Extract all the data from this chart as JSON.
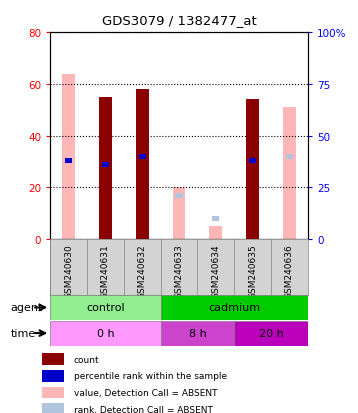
{
  "title": "GDS3079 / 1382477_at",
  "samples": [
    "GSM240630",
    "GSM240631",
    "GSM240632",
    "GSM240633",
    "GSM240634",
    "GSM240635",
    "GSM240636"
  ],
  "count_values": [
    null,
    55,
    58,
    null,
    null,
    54,
    null
  ],
  "count_absent_values": [
    64,
    null,
    null,
    20,
    5,
    null,
    51
  ],
  "rank_values": [
    38,
    36,
    40,
    null,
    null,
    38,
    null
  ],
  "rank_absent_values": [
    null,
    null,
    null,
    21,
    10,
    null,
    40
  ],
  "left_ylim": [
    0,
    80
  ],
  "right_ylim": [
    0,
    100
  ],
  "left_yticks": [
    0,
    20,
    40,
    60,
    80
  ],
  "right_yticks": [
    0,
    25,
    50,
    75,
    100
  ],
  "right_yticklabels": [
    "0",
    "25",
    "50",
    "75",
    "100%"
  ],
  "left_yticklabels": [
    "0",
    "20",
    "40",
    "60",
    "80"
  ],
  "agent_groups": [
    {
      "label": "control",
      "span": [
        0,
        3
      ],
      "color": "#90EE90"
    },
    {
      "label": "cadmium",
      "span": [
        3,
        7
      ],
      "color": "#00CC00"
    }
  ],
  "time_groups": [
    {
      "label": "0 h",
      "span": [
        0,
        3
      ],
      "color": "#FF99FF"
    },
    {
      "label": "8 h",
      "span": [
        3,
        5
      ],
      "color": "#CC44CC"
    },
    {
      "label": "20 h",
      "span": [
        5,
        7
      ],
      "color": "#BB00BB"
    }
  ],
  "color_count": "#8B0000",
  "color_rank": "#0000CD",
  "color_count_absent": "#FFB6B6",
  "color_rank_absent": "#B0C4DE",
  "bar_width": 0.35,
  "legend_items": [
    {
      "color": "#8B0000",
      "label": "count"
    },
    {
      "color": "#0000CD",
      "label": "percentile rank within the sample"
    },
    {
      "color": "#FFB6B6",
      "label": "value, Detection Call = ABSENT"
    },
    {
      "color": "#B0C4DE",
      "label": "rank, Detection Call = ABSENT"
    }
  ]
}
